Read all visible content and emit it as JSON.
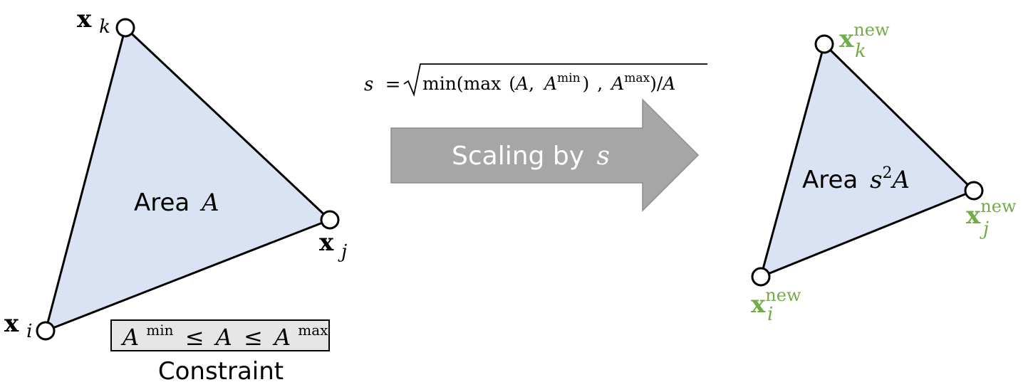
{
  "colors": {
    "triangle_fill": "#dae3f3",
    "stroke": "#000000",
    "vertex_fill": "#ffffff",
    "arrow_fill": "#a6a6a6",
    "arrow_text": "#ffffff",
    "constraint_box_fill": "#e7e6e6",
    "new_label": "#70ad47"
  },
  "left_triangle": {
    "area_word": "Area",
    "area_symbol": "A",
    "vertex_i": {
      "base": "x",
      "sub": "i"
    },
    "vertex_j": {
      "base": "x",
      "sub": "j"
    },
    "vertex_k": {
      "base": "x",
      "sub": "k"
    }
  },
  "constraint": {
    "A": "A",
    "min_sup": "min",
    "max_sup": "max",
    "leq": "≤",
    "caption": "Constraint"
  },
  "formula": {
    "lhs": "s",
    "equals": "=",
    "min_word": "min(",
    "max_word": "max",
    "open_paren": "(",
    "A": "A",
    "comma": ",",
    "min_sup": "min",
    "close_paren": ")",
    "max_sup": "max",
    "close_min": ")/",
    "A_final": "A"
  },
  "arrow": {
    "label": "Scaling by",
    "symbol": "s"
  },
  "right_triangle": {
    "area_word": "Area",
    "area_symbol": "s",
    "area_exp": "2",
    "area_tail": "A",
    "vertex_i": {
      "base": "x",
      "sub": "i",
      "sup": "new"
    },
    "vertex_j": {
      "base": "x",
      "sub": "j",
      "sup": "new"
    },
    "vertex_k": {
      "base": "x",
      "sub": "k",
      "sup": "new"
    }
  }
}
